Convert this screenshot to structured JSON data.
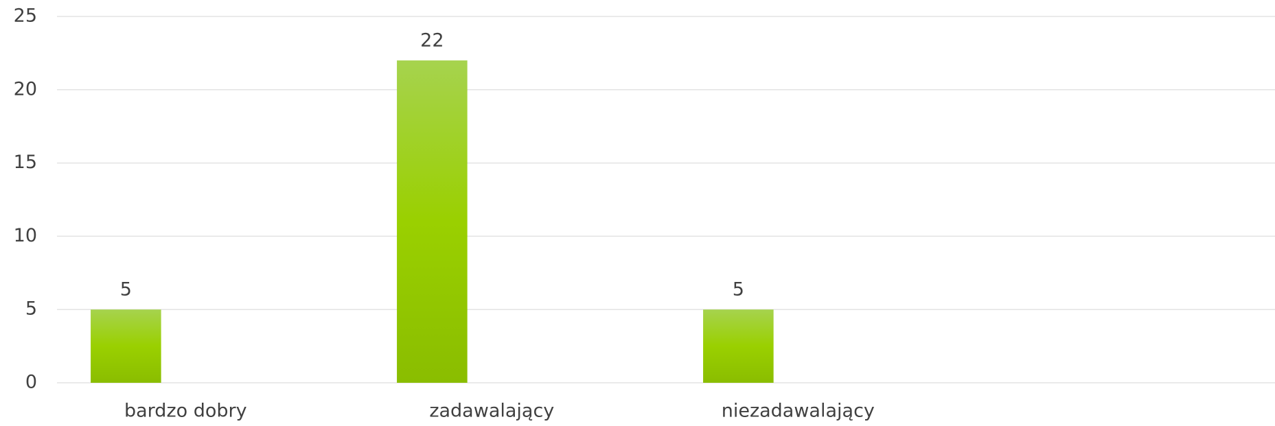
{
  "chart_data": {
    "type": "bar",
    "categories": [
      "bardzo dobry",
      "zadawalający",
      "niezadawalający"
    ],
    "values": [
      5,
      22,
      5
    ],
    "color": "#92c81a",
    "ylim": [
      0,
      25
    ],
    "yticks": [
      0,
      5,
      10,
      15,
      20,
      25
    ],
    "grid": true
  }
}
